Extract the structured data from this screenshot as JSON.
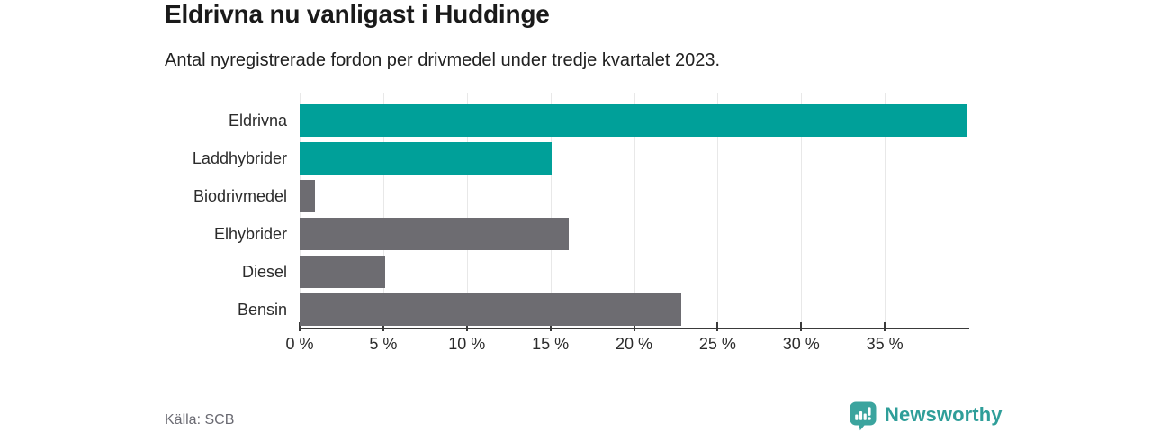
{
  "header": {
    "title": "Eldrivna nu vanligast i Huddinge",
    "subtitle": "Antal nyregistrerade fordon per drivmedel under tredje kvartalet 2023."
  },
  "chart_data": {
    "type": "bar",
    "orientation": "horizontal",
    "title": "Eldrivna nu vanligast i Huddinge",
    "subtitle": "Antal nyregistrerade fordon per drivmedel under tredje kvartalet 2023.",
    "categories": [
      "Eldrivna",
      "Laddhybrider",
      "Biodrivmedel",
      "Elhybrider",
      "Diesel",
      "Bensin"
    ],
    "values": [
      39.9,
      15.1,
      0.9,
      16.1,
      5.1,
      22.8
    ],
    "unit": "%",
    "xlabel": "",
    "ylabel": "",
    "xlim": [
      0,
      40
    ],
    "x_ticks": [
      0,
      5,
      10,
      15,
      20,
      25,
      30,
      35
    ],
    "x_tick_labels": [
      "0 %",
      "5 %",
      "10 %",
      "15 %",
      "20 %",
      "25 %",
      "30 %",
      "35 %"
    ],
    "grid": true,
    "legend": "none",
    "bar_colors": [
      "#00a099",
      "#00a099",
      "#6d6c71",
      "#6d6c71",
      "#6d6c71",
      "#6d6c71"
    ],
    "colors": {
      "teal": "#00a099",
      "gray": "#6d6c71",
      "gridline": "#e8e8e8",
      "axis": "#3a3a3a",
      "label_text": "#2b2b2b"
    }
  },
  "footer": {
    "source": "Källa: SCB",
    "brand": "Newsworthy",
    "brand_color": "#2f9e99",
    "icon_color": "#3ba49e",
    "logo_icon": "bar-chart-speech-bubble-icon"
  }
}
